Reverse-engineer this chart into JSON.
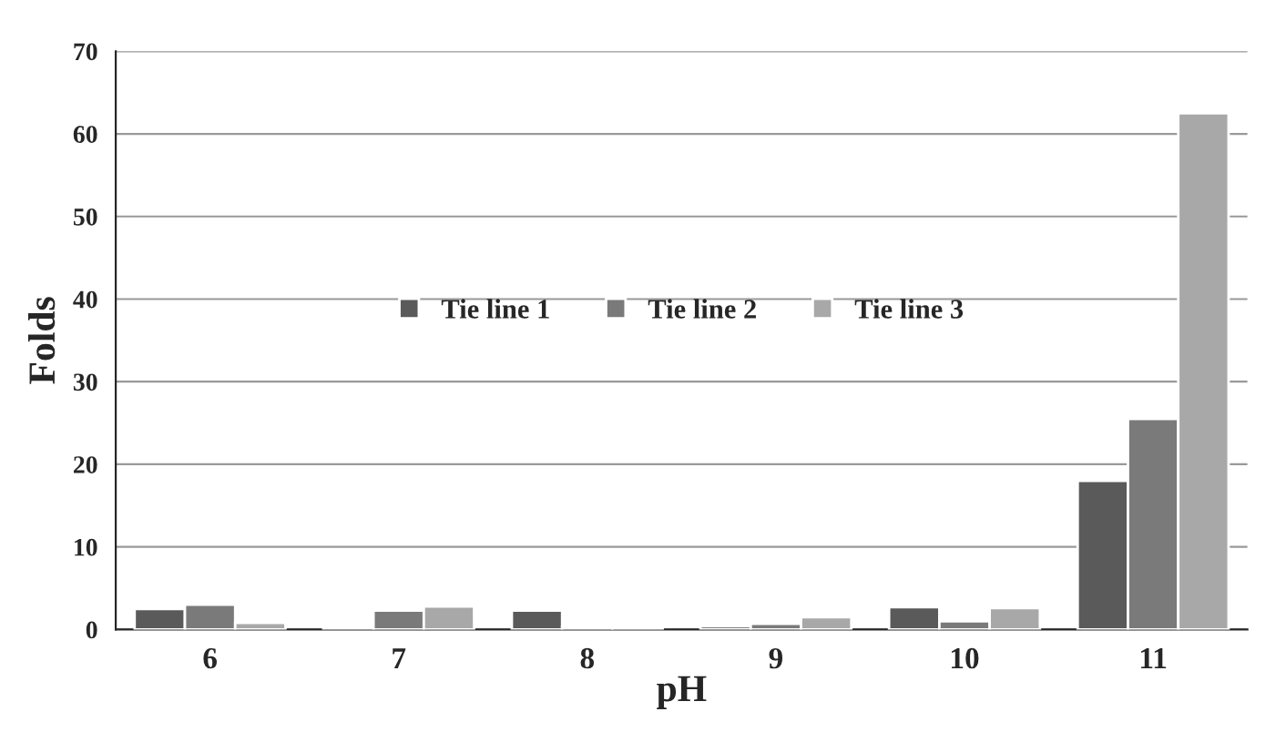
{
  "chart_data": {
    "type": "bar",
    "xlabel": "pH",
    "ylabel": "Folds",
    "categories": [
      "6",
      "7",
      "8",
      "9",
      "10",
      "11"
    ],
    "series": [
      {
        "name": "Tie line 1",
        "color": "#5a5a5a",
        "values": [
          2.5,
          0.3,
          2.3,
          0.4,
          2.7,
          18
        ]
      },
      {
        "name": "Tie line 2",
        "color": "#7a7a7a",
        "values": [
          3,
          2.3,
          0.3,
          0.7,
          1.0,
          25.5
        ]
      },
      {
        "name": "Tie line 3",
        "color": "#a8a8a8",
        "values": [
          0.8,
          2.8,
          0.3,
          1.5,
          2.6,
          62.5
        ]
      }
    ],
    "ylim": [
      0,
      70
    ],
    "yticks": [
      0,
      10,
      20,
      30,
      40,
      50,
      60,
      70
    ],
    "grid": "y",
    "legend": "center"
  }
}
